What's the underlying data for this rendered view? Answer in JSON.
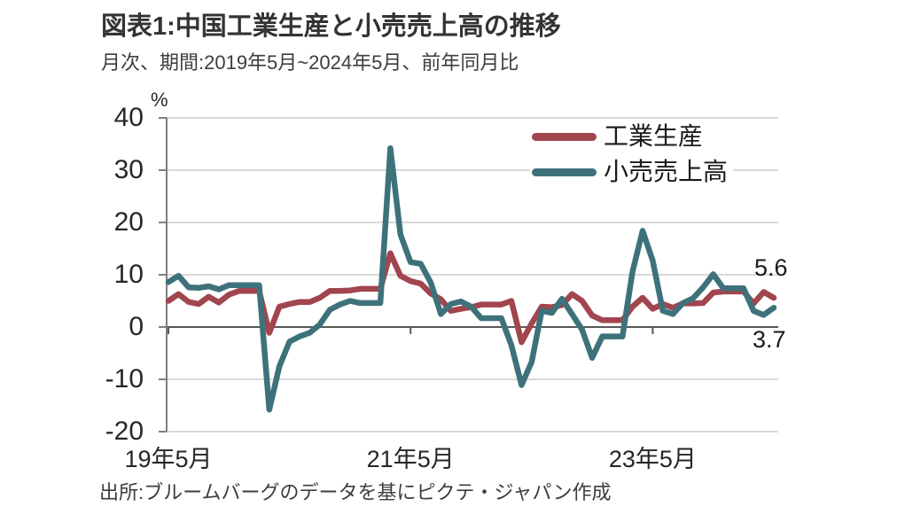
{
  "header": {
    "title": "図表1:中国工業生産と小売売上高の推移",
    "subtitle": "月次、期間:2019年5月~2024年5月、前年同月比"
  },
  "chart_data": {
    "type": "line",
    "title": "図表1:中国工業生産と小売売上高の推移",
    "unit_label": "%",
    "x_start": "2019-05",
    "x_end": "2024-05",
    "x_frequency": "monthly",
    "ylim": [
      -20,
      40
    ],
    "y_ticks": [
      40,
      30,
      20,
      10,
      0,
      -10,
      -20
    ],
    "x_ticks": [
      {
        "label": "19年5月",
        "month_index": 0
      },
      {
        "label": "21年5月",
        "month_index": 24
      },
      {
        "label": "23年5月",
        "month_index": 48
      }
    ],
    "grid": true,
    "legend_position": "top-right",
    "colors": {
      "industrial": "#A1454E",
      "retail": "#3E727B",
      "gridline": "#d9d9d9",
      "zero_axis": "#595959",
      "y_axis": "#808080"
    },
    "series": [
      {
        "name": "工業生産",
        "color": "#A1454E",
        "values": [
          5.0,
          6.3,
          4.8,
          4.4,
          5.8,
          4.7,
          6.2,
          6.9,
          6.9,
          6.9,
          -1.1,
          3.9,
          4.4,
          4.8,
          4.8,
          5.6,
          6.9,
          6.9,
          7.0,
          7.3,
          7.3,
          7.3,
          14.1,
          9.8,
          8.8,
          8.3,
          6.4,
          5.3,
          3.1,
          3.5,
          3.8,
          4.3,
          4.3,
          4.3,
          5.0,
          -2.9,
          0.7,
          3.9,
          3.8,
          4.2,
          6.3,
          5.0,
          2.2,
          1.3,
          1.3,
          1.3,
          3.9,
          5.6,
          3.5,
          4.4,
          3.7,
          4.5,
          4.5,
          4.6,
          6.6,
          6.8,
          6.8,
          6.8,
          4.5,
          6.7,
          5.6
        ]
      },
      {
        "name": "小売売上高",
        "color": "#3E727B",
        "values": [
          8.6,
          9.8,
          7.6,
          7.5,
          7.8,
          7.2,
          8.0,
          8.0,
          8.0,
          8.0,
          -15.8,
          -7.5,
          -2.8,
          -1.8,
          -1.1,
          0.5,
          3.3,
          4.3,
          5.0,
          4.6,
          4.6,
          4.6,
          34.2,
          17.7,
          12.4,
          12.1,
          8.5,
          2.5,
          4.4,
          4.9,
          3.9,
          1.7,
          1.7,
          1.7,
          -3.5,
          -11.1,
          -6.7,
          3.1,
          2.7,
          5.4,
          2.5,
          -0.5,
          -5.9,
          -1.8,
          -1.8,
          -1.8,
          10.6,
          18.4,
          12.7,
          3.1,
          2.5,
          4.6,
          5.5,
          7.6,
          10.1,
          7.4,
          7.4,
          7.4,
          3.1,
          2.3,
          3.7
        ]
      }
    ],
    "end_labels": [
      {
        "text": "5.6",
        "series": "工業生産"
      },
      {
        "text": "3.7",
        "series": "小売売上高"
      }
    ]
  },
  "footer": {
    "source": "出所:ブルームバーグのデータを基にピクテ・ジャパン作成"
  }
}
